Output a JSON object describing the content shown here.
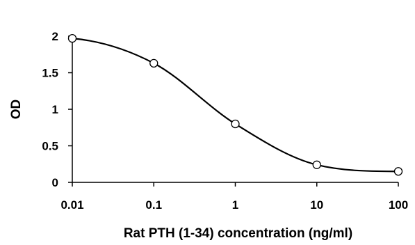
{
  "chart_data": {
    "type": "line",
    "title": "",
    "xlabel": "Rat PTH (1-34) concentration (ng/ml)",
    "ylabel": "OD",
    "x_scale": "log",
    "xlim": [
      0.01,
      100
    ],
    "ylim": [
      0,
      2
    ],
    "x_ticks": [
      0.01,
      0.1,
      1,
      10,
      100
    ],
    "x_tick_labels": [
      "0.01",
      "0.1",
      "1",
      "10",
      "100"
    ],
    "y_ticks": [
      0,
      0.5,
      1,
      1.5,
      2
    ],
    "y_tick_labels": [
      "0",
      "0.5",
      "1",
      "1.5",
      "2"
    ],
    "grid": false,
    "legend": "none",
    "line_color": "#000000",
    "marker": "open-circle",
    "series": [
      {
        "x": [
          0.01,
          0.1,
          1,
          10,
          100
        ],
        "y": [
          1.97,
          1.63,
          0.8,
          0.24,
          0.15
        ]
      }
    ]
  }
}
